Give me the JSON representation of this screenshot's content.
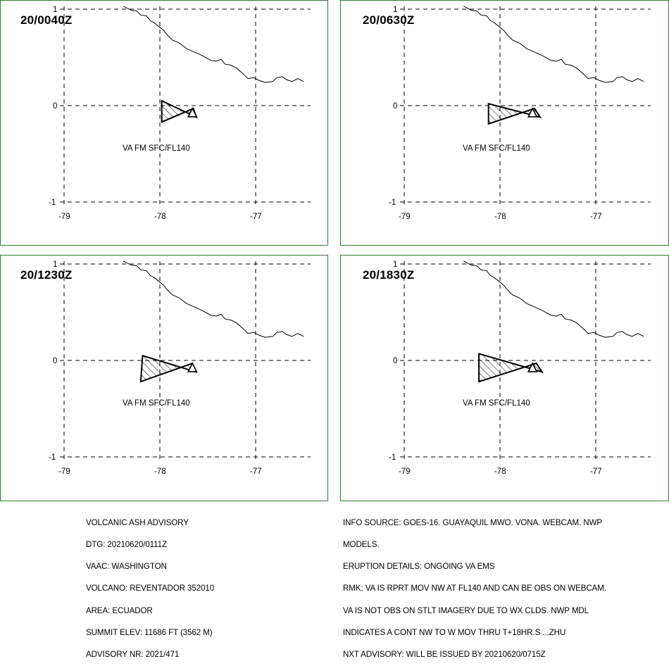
{
  "panels": [
    {
      "time": "20/0040Z",
      "level_label": "VA FM SFC/FL140",
      "polygon": [
        [
          -77.98,
          0.05
        ],
        [
          -77.62,
          -0.12
        ],
        [
          -77.65,
          -0.03
        ],
        [
          -77.98,
          -0.17
        ]
      ]
    },
    {
      "time": "20/0630Z",
      "level_label": "VA FM SFC/FL140",
      "polygon": [
        [
          -78.12,
          0.02
        ],
        [
          -77.58,
          -0.12
        ],
        [
          -77.64,
          -0.03
        ],
        [
          -78.12,
          -0.19
        ]
      ]
    },
    {
      "time": "20/1230Z",
      "level_label": "VA FM SFC/FL140",
      "polygon": [
        [
          -78.18,
          0.05
        ],
        [
          -77.62,
          -0.12
        ],
        [
          -77.66,
          -0.03
        ],
        [
          -78.2,
          -0.22
        ]
      ]
    },
    {
      "time": "20/1830Z",
      "level_label": "VA FM SFC/FL140",
      "polygon": [
        [
          -78.22,
          0.07
        ],
        [
          -77.56,
          -0.12
        ],
        [
          -77.62,
          -0.03
        ],
        [
          -78.22,
          -0.22
        ]
      ]
    }
  ],
  "map": {
    "x_ticks": [
      "-79",
      "-78",
      "-77"
    ],
    "y_ticks": [
      "1",
      "0",
      "-1"
    ],
    "lon_range": [
      -79,
      -77
    ],
    "lat_range": [
      -1,
      1
    ],
    "volcano": {
      "lon": -77.66,
      "lat": -0.08
    },
    "coastline": [
      [
        -78.38,
        1.03
      ],
      [
        -78.3,
        0.99
      ],
      [
        -78.24,
        0.98
      ],
      [
        -78.2,
        0.94
      ],
      [
        -78.14,
        0.93
      ],
      [
        -78.1,
        0.88
      ],
      [
        -78.06,
        0.86
      ],
      [
        -78.01,
        0.82
      ],
      [
        -77.96,
        0.78
      ],
      [
        -77.93,
        0.74
      ],
      [
        -77.87,
        0.68
      ],
      [
        -77.8,
        0.65
      ],
      [
        -77.72,
        0.59
      ],
      [
        -77.63,
        0.55
      ],
      [
        -77.56,
        0.52
      ],
      [
        -77.47,
        0.47
      ],
      [
        -77.41,
        0.46
      ],
      [
        -77.36,
        0.48
      ],
      [
        -77.32,
        0.43
      ],
      [
        -77.26,
        0.42
      ],
      [
        -77.2,
        0.39
      ],
      [
        -77.12,
        0.32
      ],
      [
        -77.08,
        0.28
      ],
      [
        -77.02,
        0.29
      ],
      [
        -76.96,
        0.26
      ],
      [
        -76.9,
        0.24
      ],
      [
        -76.82,
        0.25
      ],
      [
        -76.78,
        0.29
      ],
      [
        -76.72,
        0.3
      ],
      [
        -76.68,
        0.27
      ],
      [
        -76.62,
        0.25
      ],
      [
        -76.56,
        0.28
      ],
      [
        -76.5,
        0.25
      ]
    ]
  },
  "advisory_left": [
    "VOLCANIC ASH ADVISORY",
    "DTG: 20210620/0111Z",
    "VAAC: WASHINGTON",
    "VOLCANO: REVENTADOR 352010",
    "AREA: ECUADOR",
    "SUMMIT ELEV: 11686 FT (3562 M)",
    "ADVISORY NR: 2021/471"
  ],
  "advisory_right": [
    "INFO SOURCE: GOES-16. GUAYAQUIL MWO. VONA. WEBCAM. NWP",
    "MODELS.",
    "ERUPTION DETAILS: ONGOING VA EMS",
    "RMK: VA IS RPRT MOV NW AT FL140 AND CAN BE OBS ON WEBCAM.",
    "VA IS NOT OBS ON STLT IMAGERY DUE TO WX CLDS. NWP MDL",
    "INDICATES A CONT NW TO W MOV THRU T+18HR.S ...ZHU",
    "NXT ADVISORY: WILL BE ISSUED BY 20210620/0715Z"
  ],
  "colors": {
    "frame": "#2e7d32",
    "ink": "#000000"
  }
}
